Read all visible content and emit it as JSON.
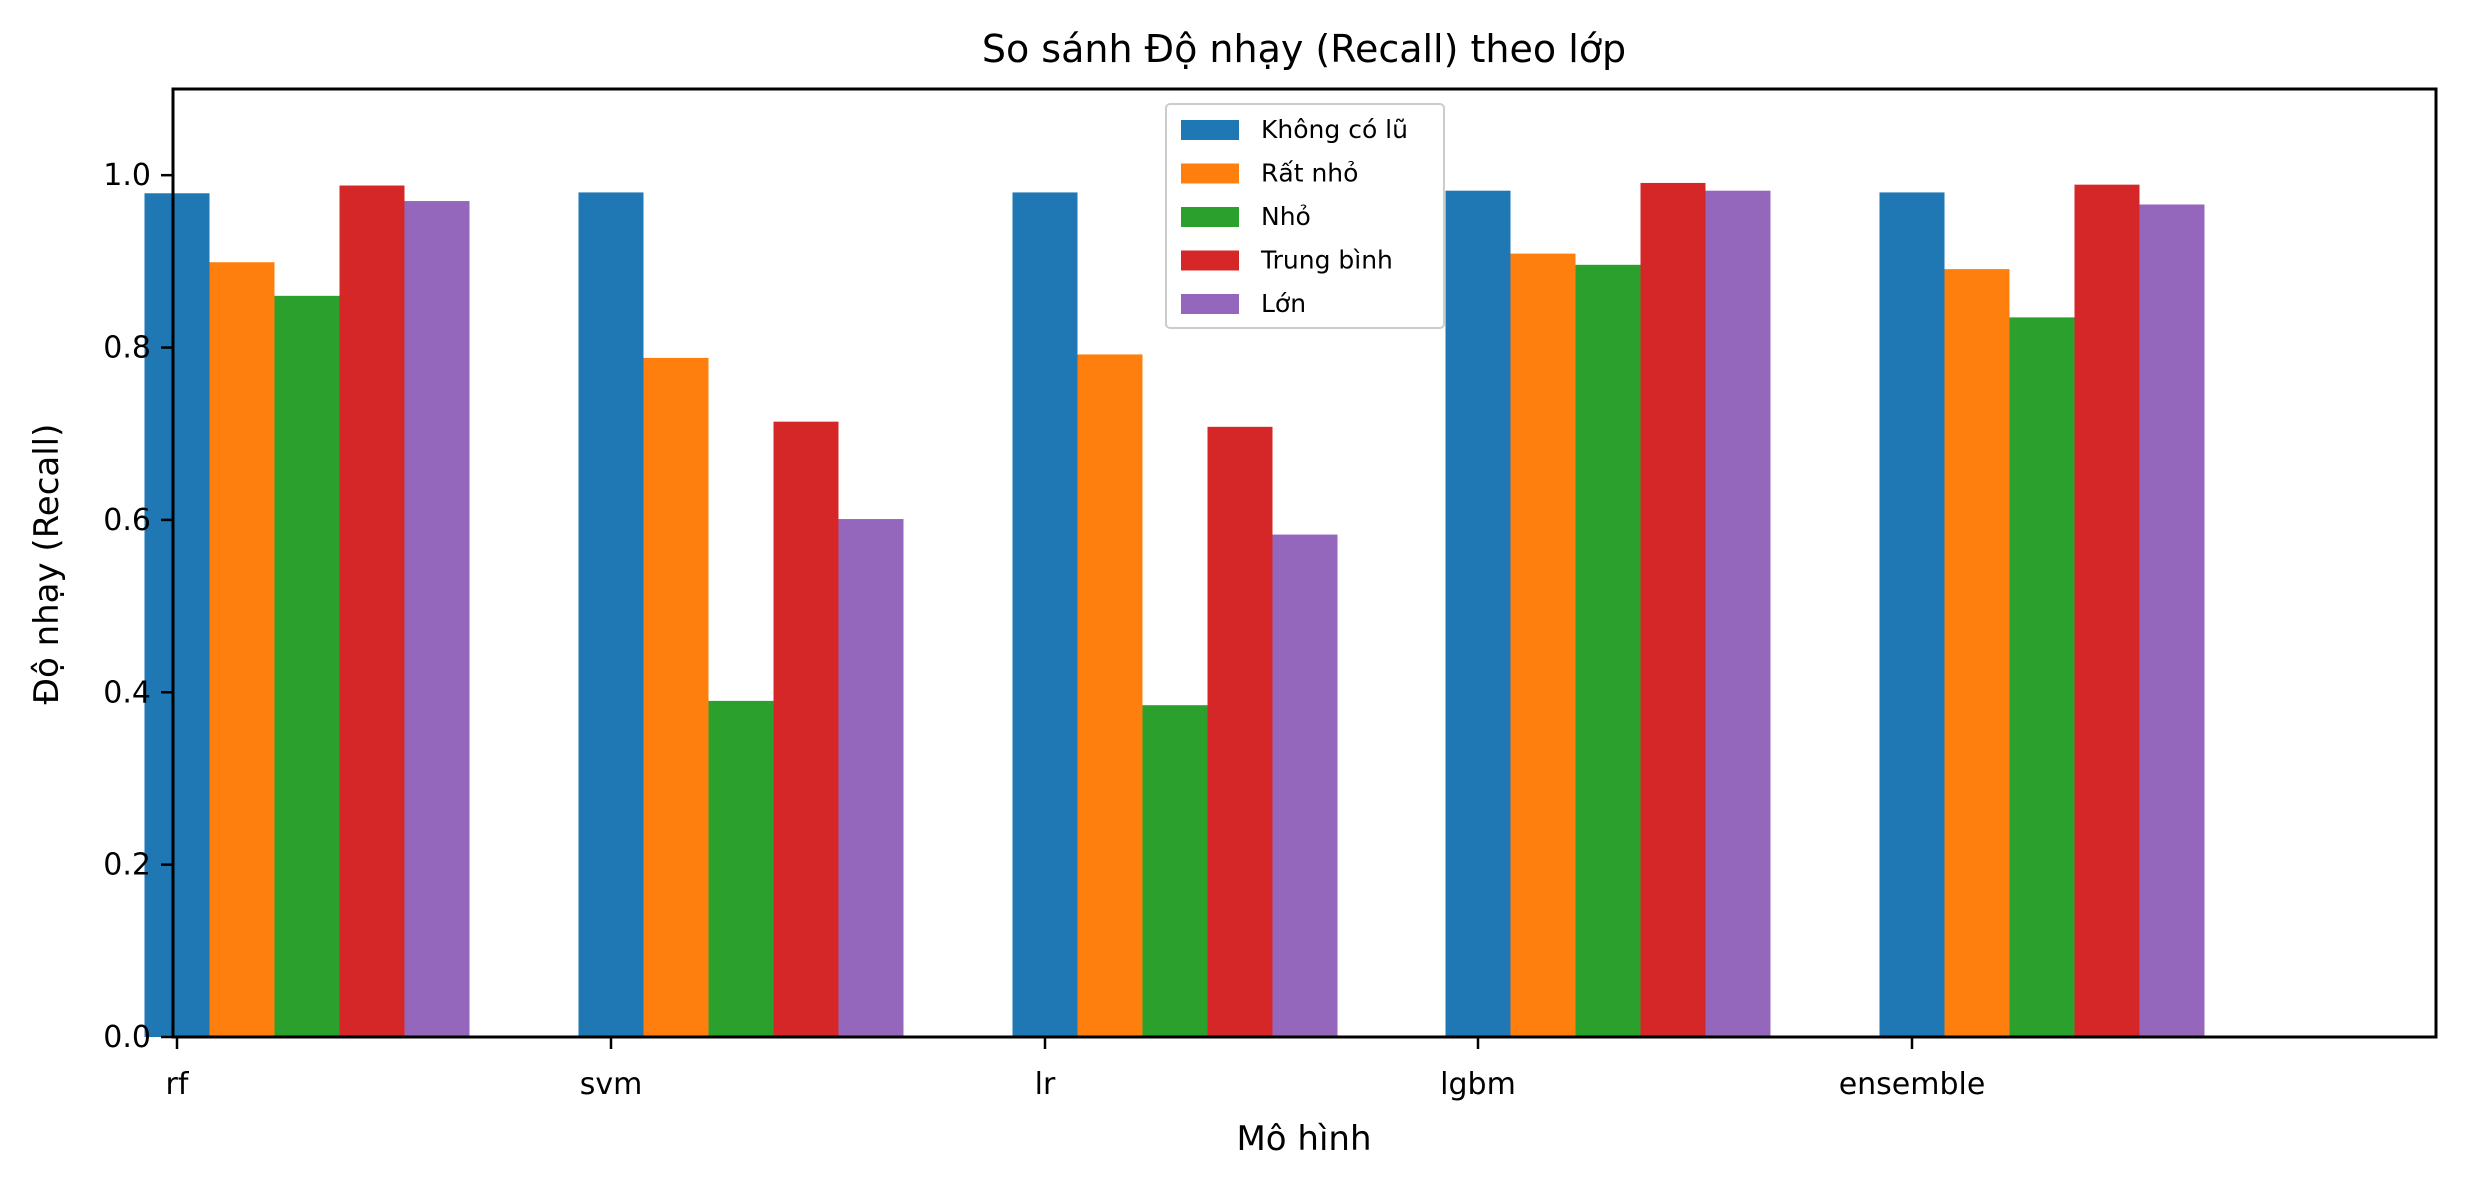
{
  "chart_data": {
    "type": "bar",
    "title": "So sánh Độ nhạy (Recall) theo lớp",
    "xlabel": "Mô hình",
    "ylabel": "Độ nhạy (Recall)",
    "categories": [
      "rf",
      "svm",
      "lr",
      "lgbm",
      "ensemble"
    ],
    "ylim": [
      0,
      1.1
    ],
    "yticks": [
      "0.0",
      "0.2",
      "0.4",
      "0.6",
      "0.8",
      "1.0"
    ],
    "legend_position": "top-center",
    "grid": false,
    "series": [
      {
        "name": "Không có lũ",
        "color": "#1f77b4",
        "values": [
          0.979,
          0.98,
          0.98,
          0.982,
          0.98
        ]
      },
      {
        "name": "Rất nhỏ",
        "color": "#ff7f0e",
        "values": [
          0.899,
          0.788,
          0.792,
          0.909,
          0.891
        ]
      },
      {
        "name": "Nhỏ",
        "color": "#2ca02c",
        "values": [
          0.86,
          0.39,
          0.385,
          0.896,
          0.835
        ]
      },
      {
        "name": "Trung bình",
        "color": "#d62728",
        "values": [
          0.988,
          0.714,
          0.708,
          0.991,
          0.989
        ]
      },
      {
        "name": "Lớn",
        "color": "#9467bd",
        "values": [
          0.97,
          0.601,
          0.583,
          0.982,
          0.966
        ]
      }
    ]
  }
}
